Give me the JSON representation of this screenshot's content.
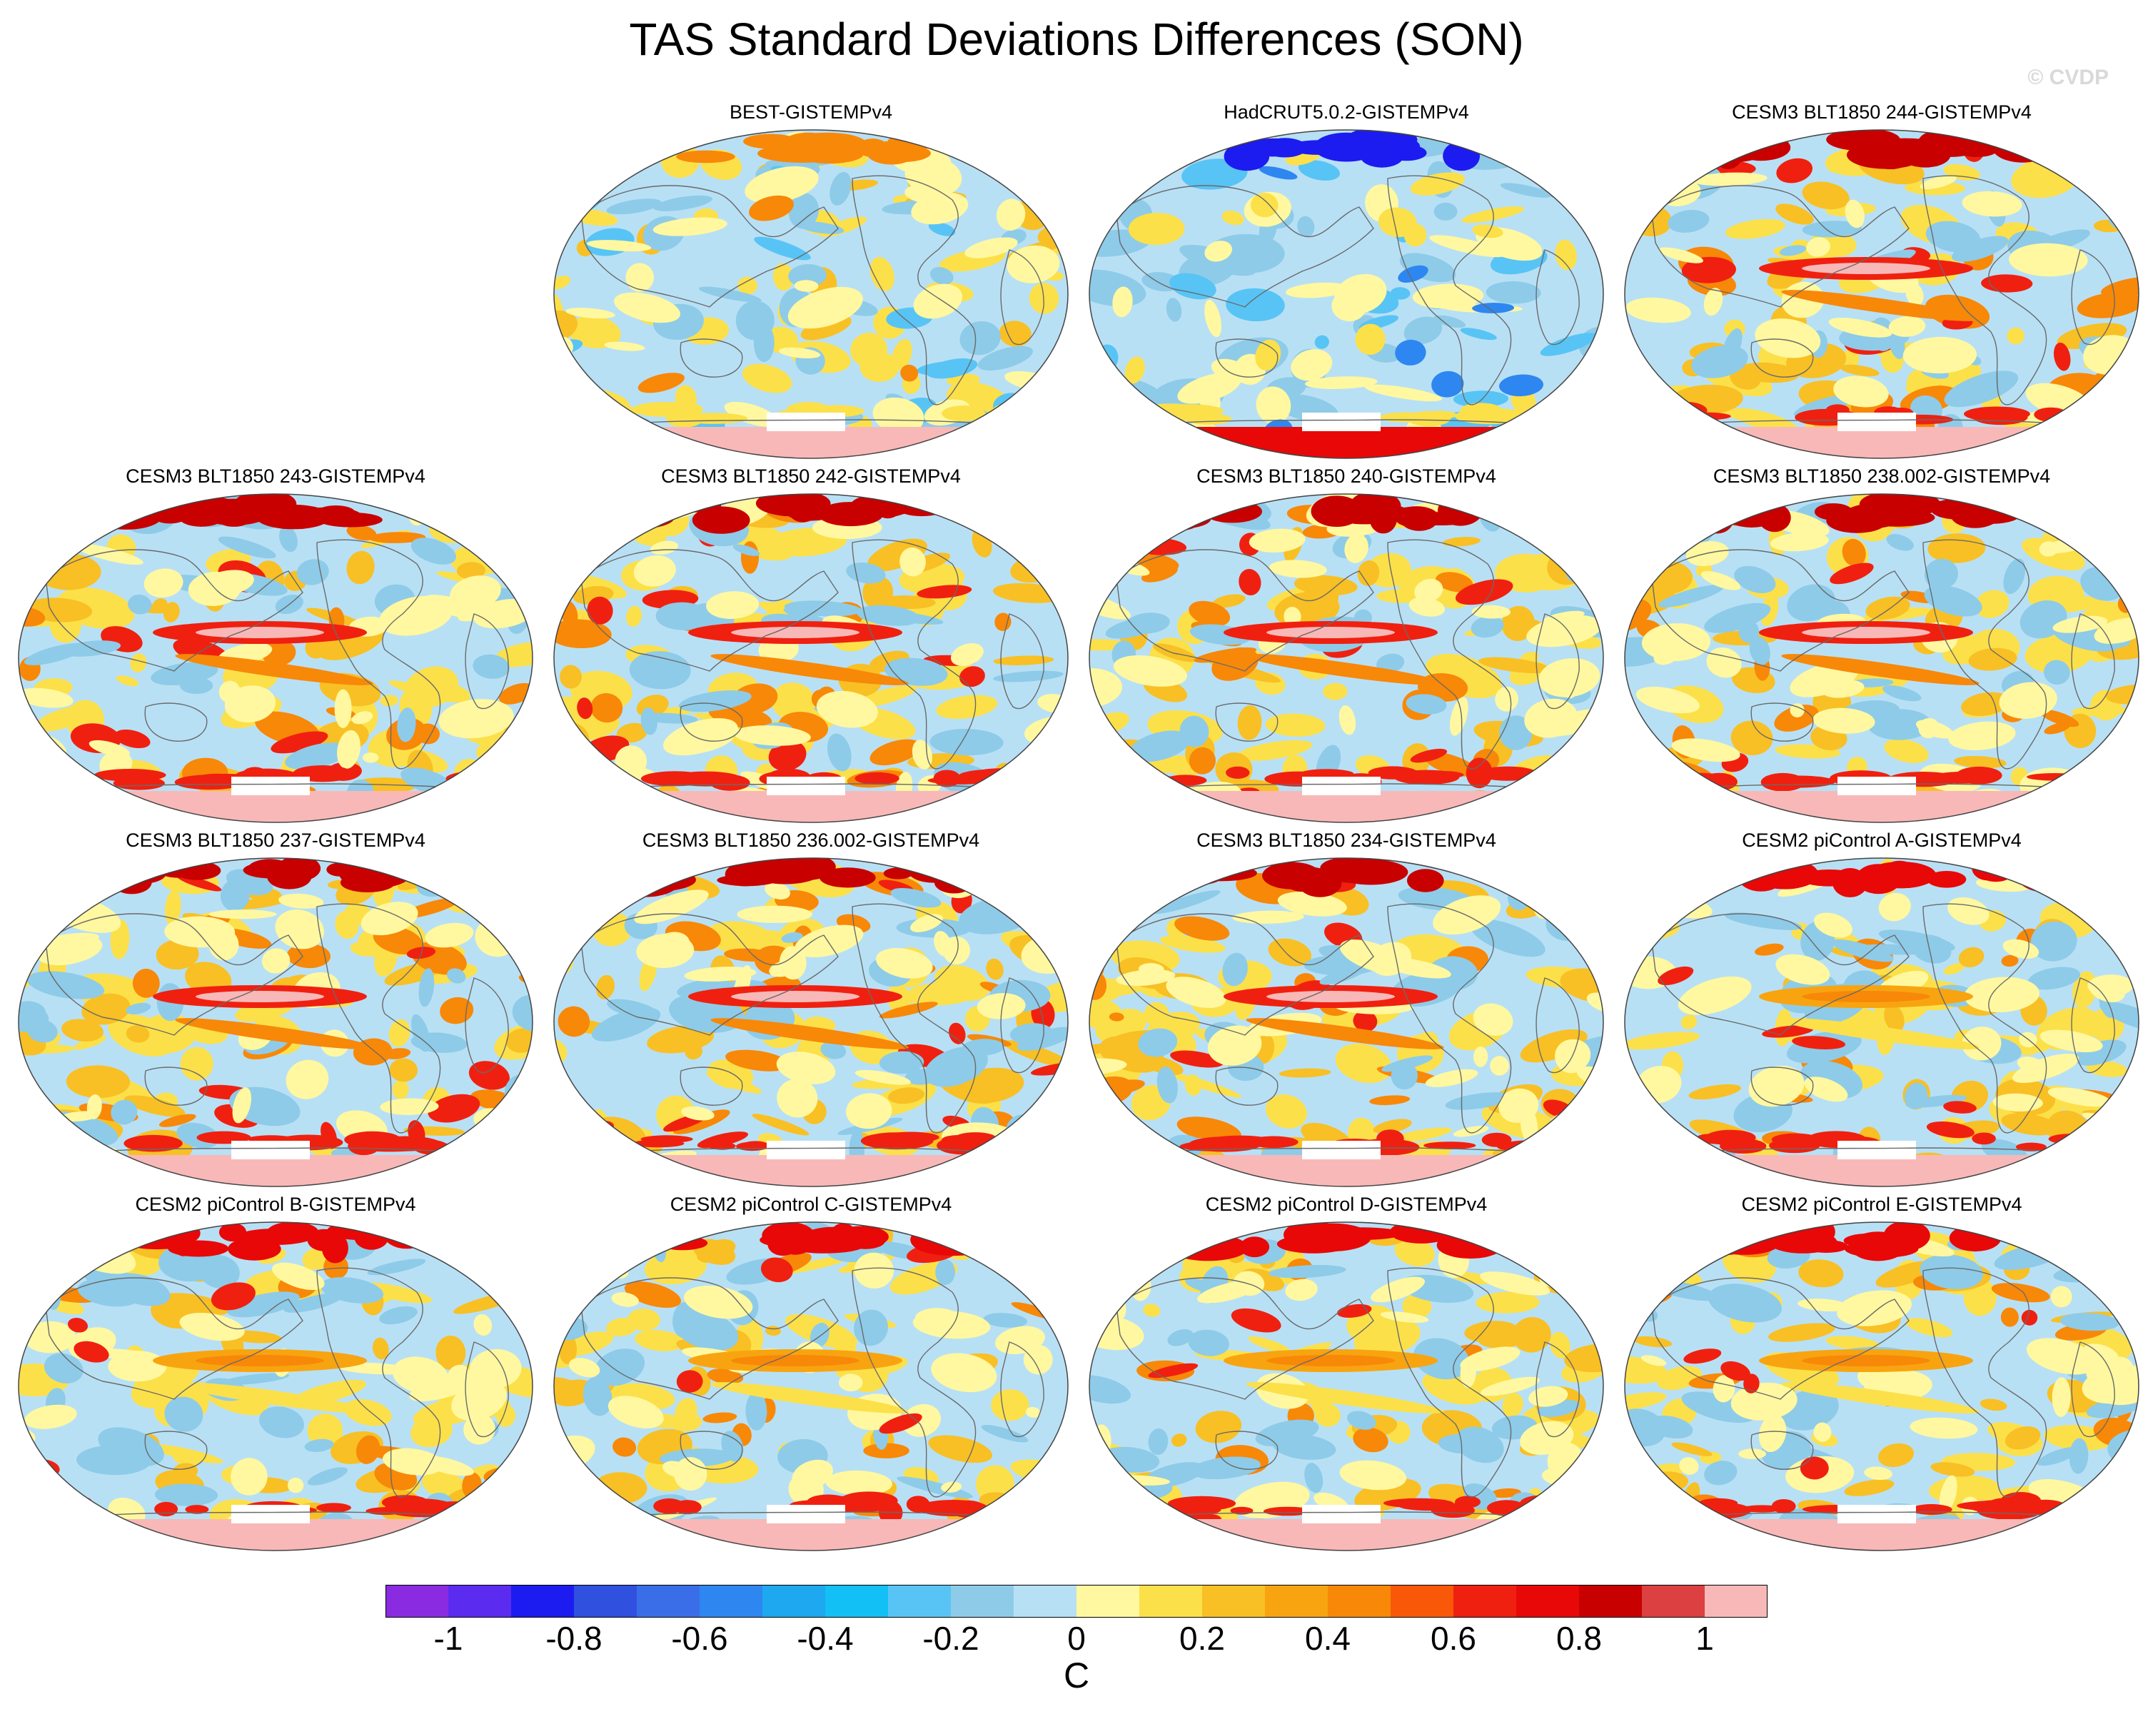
{
  "title": "TAS Standard Deviations Differences (SON)",
  "watermark": "© CVDP",
  "panels": [
    {
      "label": "BEST-GISTEMPv4",
      "style": "obs1"
    },
    {
      "label": "HadCRUT5.0.2-GISTEMPv4",
      "style": "obs2"
    },
    {
      "label": "CESM3 BLT1850 244-GISTEMPv4",
      "style": "model_strong"
    },
    {
      "label": "CESM3 BLT1850 243-GISTEMPv4",
      "style": "model_strong"
    },
    {
      "label": "CESM3 BLT1850 242-GISTEMPv4",
      "style": "model_strong"
    },
    {
      "label": "CESM3 BLT1850 240-GISTEMPv4",
      "style": "model_strong"
    },
    {
      "label": "CESM3 BLT1850 238.002-GISTEMPv4",
      "style": "model_strong"
    },
    {
      "label": "CESM3 BLT1850 237-GISTEMPv4",
      "style": "model_strong"
    },
    {
      "label": "CESM3 BLT1850 236.002-GISTEMPv4",
      "style": "model_strong"
    },
    {
      "label": "CESM3 BLT1850 234-GISTEMPv4",
      "style": "model_strong"
    },
    {
      "label": "CESM2 piControl A-GISTEMPv4",
      "style": "model_mid"
    },
    {
      "label": "CESM2 piControl B-GISTEMPv4",
      "style": "model_mid"
    },
    {
      "label": "CESM2 piControl C-GISTEMPv4",
      "style": "model_mid"
    },
    {
      "label": "CESM2 piControl D-GISTEMPv4",
      "style": "model_mid"
    },
    {
      "label": "CESM2 piControl E-GISTEMPv4",
      "style": "model_mid"
    }
  ],
  "colorbar": {
    "colors": [
      "#8a2be2",
      "#5b2bf0",
      "#1c1cf0",
      "#3050e0",
      "#3a6ee8",
      "#2e86f0",
      "#1ea8f0",
      "#12c0f5",
      "#58c4f5",
      "#8ecbe8",
      "#b8e0f5",
      "#fff8a0",
      "#fce04a",
      "#f8c024",
      "#f8a410",
      "#f88808",
      "#f85808",
      "#f02010",
      "#e80808",
      "#c80000",
      "#dc4040",
      "#f8b8b8"
    ],
    "ticks": [
      "-1",
      "-0.8",
      "-0.6",
      "-0.4",
      "-0.2",
      "0",
      "0.2",
      "0.4",
      "0.6",
      "0.8",
      "1"
    ],
    "units": "C"
  }
}
